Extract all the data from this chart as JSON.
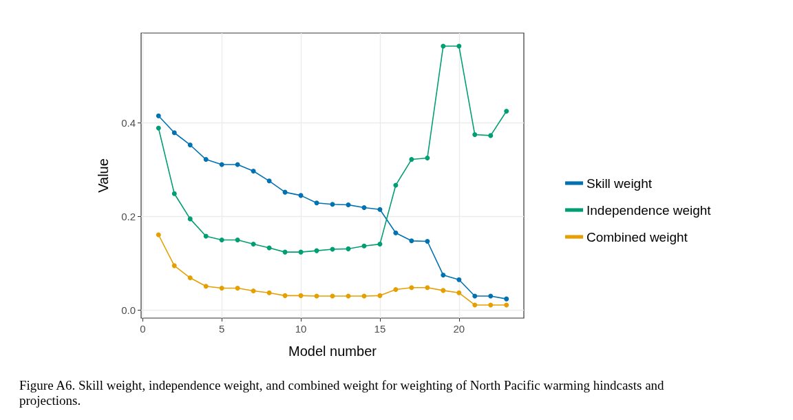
{
  "chart_data": {
    "type": "line",
    "xlabel": "Model number",
    "ylabel": "Value",
    "x": [
      1,
      2,
      3,
      4,
      5,
      6,
      7,
      8,
      9,
      10,
      11,
      12,
      13,
      14,
      15,
      16,
      17,
      18,
      19,
      20,
      21,
      22,
      23
    ],
    "series": [
      {
        "name": "Skill weight",
        "color": "#0072b2",
        "values": [
          0.415,
          0.379,
          0.353,
          0.322,
          0.311,
          0.311,
          0.297,
          0.276,
          0.252,
          0.245,
          0.229,
          0.226,
          0.225,
          0.219,
          0.215,
          0.165,
          0.148,
          0.147,
          0.075,
          0.065,
          0.03,
          0.03,
          0.024
        ]
      },
      {
        "name": "Independence weight",
        "color": "#009e73",
        "values": [
          0.389,
          0.249,
          0.195,
          0.158,
          0.15,
          0.15,
          0.141,
          0.133,
          0.124,
          0.124,
          0.127,
          0.13,
          0.131,
          0.137,
          0.141,
          0.267,
          0.322,
          0.325,
          0.564,
          0.564,
          0.375,
          0.373,
          0.425
        ]
      },
      {
        "name": "Combined weight",
        "color": "#e69f00",
        "values": [
          0.161,
          0.095,
          0.069,
          0.051,
          0.047,
          0.047,
          0.041,
          0.037,
          0.031,
          0.031,
          0.03,
          0.03,
          0.03,
          0.03,
          0.031,
          0.044,
          0.048,
          0.048,
          0.042,
          0.037,
          0.011,
          0.011,
          0.011
        ]
      }
    ],
    "xlim": [
      -0.1,
      24.1
    ],
    "xticks": [
      0,
      5,
      10,
      15,
      20
    ],
    "ylim": [
      -0.017,
      0.592
    ],
    "yticks": [
      {
        "value": 0,
        "label": "0.0"
      },
      {
        "value": 0.2,
        "label": "0.2"
      },
      {
        "value": 0.4,
        "label": "0.4"
      }
    ],
    "grid": true,
    "legend": "right",
    "marker": "circle",
    "line_style": "solid",
    "annotations": [
      "Figure A6. Skill weight, independence weight, and combined weight for weighting of North Pacific warming hindcasts and projections."
    ]
  }
}
